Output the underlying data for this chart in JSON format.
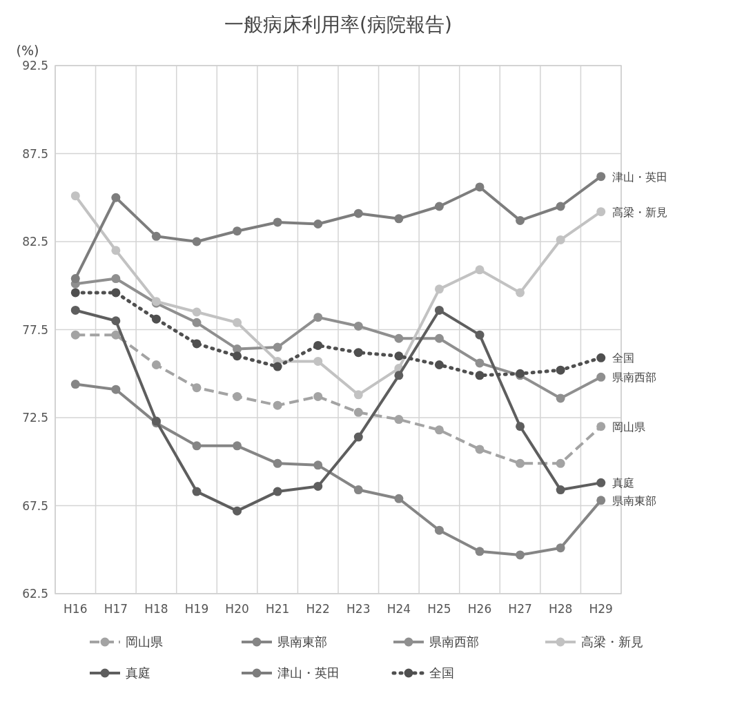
{
  "chart_data": {
    "type": "line",
    "title": "一般病床利用率(病院報告)",
    "ylabel": "(%)",
    "categories": [
      "H16",
      "H17",
      "H18",
      "H19",
      "H20",
      "H21",
      "H22",
      "H23",
      "H24",
      "H25",
      "H26",
      "H27",
      "H28",
      "H29"
    ],
    "ylim": [
      62.5,
      92.5
    ],
    "yticks": [
      62.5,
      67.5,
      72.5,
      77.5,
      82.5,
      87.5,
      92.5
    ],
    "grid": true,
    "legend": "bottom",
    "marker": "circle",
    "series": [
      {
        "name": "岡山県",
        "color": "#a3a3a3",
        "line_style": "dashed",
        "values": [
          77.2,
          77.2,
          75.5,
          74.2,
          73.7,
          73.2,
          73.7,
          72.8,
          72.4,
          71.8,
          70.7,
          69.9,
          69.9,
          72.0
        ]
      },
      {
        "name": "県南東部",
        "color": "#858585",
        "line_style": "solid",
        "values": [
          74.4,
          74.1,
          72.2,
          70.9,
          70.9,
          69.9,
          69.8,
          68.4,
          67.9,
          66.1,
          64.9,
          64.7,
          65.1,
          67.8
        ]
      },
      {
        "name": "県南西部",
        "color": "#8f8f8f",
        "line_style": "solid",
        "values": [
          80.1,
          80.4,
          79.0,
          77.9,
          76.4,
          76.5,
          78.2,
          77.7,
          77.0,
          77.0,
          75.6,
          74.9,
          73.6,
          74.8
        ]
      },
      {
        "name": "高梁・新見",
        "color": "#c2c2c2",
        "line_style": "solid",
        "values": [
          85.1,
          82.0,
          79.1,
          78.5,
          77.9,
          75.7,
          75.7,
          73.8,
          75.3,
          79.8,
          80.9,
          79.6,
          82.6,
          84.2
        ]
      },
      {
        "name": "真庭",
        "color": "#5e5e5e",
        "line_style": "solid",
        "values": [
          78.6,
          78.0,
          72.3,
          68.3,
          67.2,
          68.3,
          68.6,
          71.4,
          74.9,
          78.6,
          77.2,
          72.0,
          68.4,
          68.8
        ]
      },
      {
        "name": "津山・英田",
        "color": "#7d7d7d",
        "line_style": "solid",
        "values": [
          80.4,
          85.0,
          82.8,
          82.5,
          83.1,
          83.6,
          83.5,
          84.1,
          83.8,
          84.5,
          85.6,
          83.7,
          84.5,
          86.2
        ]
      },
      {
        "name": "全国",
        "color": "#4f4f4f",
        "line_style": "dotted",
        "values": [
          79.6,
          79.6,
          78.1,
          76.7,
          76.0,
          75.4,
          76.6,
          76.2,
          76.0,
          75.5,
          74.9,
          75.0,
          75.2,
          75.9
        ]
      }
    ],
    "annotations": [
      {
        "text": "津山・英田",
        "x": "H29",
        "y": 86.2
      },
      {
        "text": "高梁・新見",
        "x": "H29",
        "y": 84.2
      },
      {
        "text": "全国",
        "x": "H29",
        "y": 75.9
      },
      {
        "text": "県南西部",
        "x": "H29",
        "y": 74.8
      },
      {
        "text": "岡山県",
        "x": "H29",
        "y": 72.0
      },
      {
        "text": "真庭",
        "x": "H29",
        "y": 68.8
      },
      {
        "text": "県南東部",
        "x": "H29",
        "y": 67.8
      }
    ]
  }
}
